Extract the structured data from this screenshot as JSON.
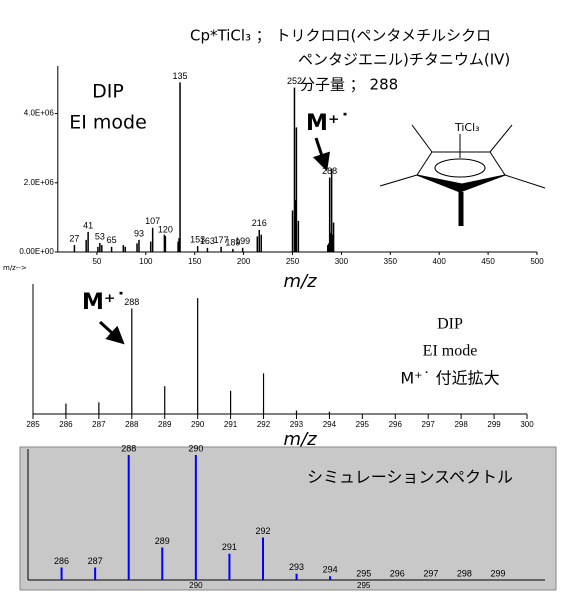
{
  "header": {
    "lines": [
      "Cp*TiCl₃ ； トリクロロ(ペンタメチルシクロ",
      "ペンタジエニル)チタニウム(IV)",
      "分子量 ； 288"
    ]
  },
  "chart_data": [
    {
      "type": "stem",
      "xlabel_prefix": "m/z-->",
      "xlabel": "m/z",
      "annotations": [
        "DIP",
        "EI mode"
      ],
      "ion_label": "M⁺˙",
      "structure_label": "TiCl₃",
      "xlim": [
        10,
        500
      ],
      "xticks": [
        50,
        100,
        150,
        200,
        250,
        300,
        350,
        400,
        450,
        500
      ],
      "ylim": [
        0,
        5200000
      ],
      "yticks": [
        {
          "value": 0,
          "label": "0.00E+00"
        },
        {
          "value": 2000000,
          "label": "2.0E+06"
        },
        {
          "value": 4000000,
          "label": "4.0E+06"
        }
      ],
      "color": "#000000",
      "series": [
        {
          "labeled": true,
          "x": [
            27,
            41,
            53,
            65,
            93,
            107,
            120,
            135,
            153,
            163,
            177,
            189,
            199,
            216,
            252,
            288
          ],
          "values": [
            200000,
            580000,
            260000,
            150000,
            350000,
            700000,
            460000,
            4900000,
            170000,
            120000,
            150000,
            90000,
            120000,
            640000,
            4750000,
            2150000
          ]
        },
        {
          "labeled": false,
          "x": [
            39,
            51,
            55,
            77,
            79,
            91,
            105,
            119,
            133,
            134,
            214,
            218,
            250,
            253,
            254,
            256,
            286,
            287,
            289,
            290,
            291,
            292
          ],
          "values": [
            350000,
            150000,
            200000,
            200000,
            150000,
            250000,
            300000,
            500000,
            300000,
            400000,
            450000,
            500000,
            1200000,
            1500000,
            3600000,
            900000,
            200000,
            250000,
            550000,
            2400000,
            500000,
            850000
          ]
        }
      ]
    },
    {
      "type": "stem",
      "xlabel": "m/z",
      "annotations": [
        "DIP",
        "EI mode",
        "M⁺˙ 付近拡大"
      ],
      "ion_label": "M⁺˙",
      "xlim": [
        285,
        300
      ],
      "xticks": [
        285,
        286,
        287,
        288,
        289,
        290,
        291,
        292,
        293,
        294,
        295,
        296,
        297,
        298,
        299,
        300
      ],
      "ylim": [
        0,
        107
      ],
      "color": "#000000",
      "series": [
        {
          "labeled": true,
          "x": [
            288
          ],
          "values": [
            91
          ]
        },
        {
          "labeled": false,
          "x": [
            286,
            287,
            289,
            290,
            291,
            292,
            293,
            294
          ],
          "values": [
            9,
            10,
            24,
            100,
            20,
            35,
            3,
            2
          ]
        }
      ]
    },
    {
      "type": "stem",
      "title": "シミュレーションスペクトル",
      "background": "#c8c8c8",
      "color": "#0000ff",
      "xlim": [
        285,
        300.4
      ],
      "xticks": [
        290,
        295
      ],
      "ylim": [
        0,
        100
      ],
      "series": [
        {
          "labeled": true,
          "x": [
            286,
            287,
            288,
            289,
            290,
            291,
            292,
            293,
            294,
            295,
            296,
            297,
            298,
            299
          ],
          "values": [
            10,
            10,
            100,
            26,
            100,
            21,
            34,
            5,
            3,
            0,
            0,
            0,
            0,
            0
          ]
        }
      ]
    }
  ]
}
